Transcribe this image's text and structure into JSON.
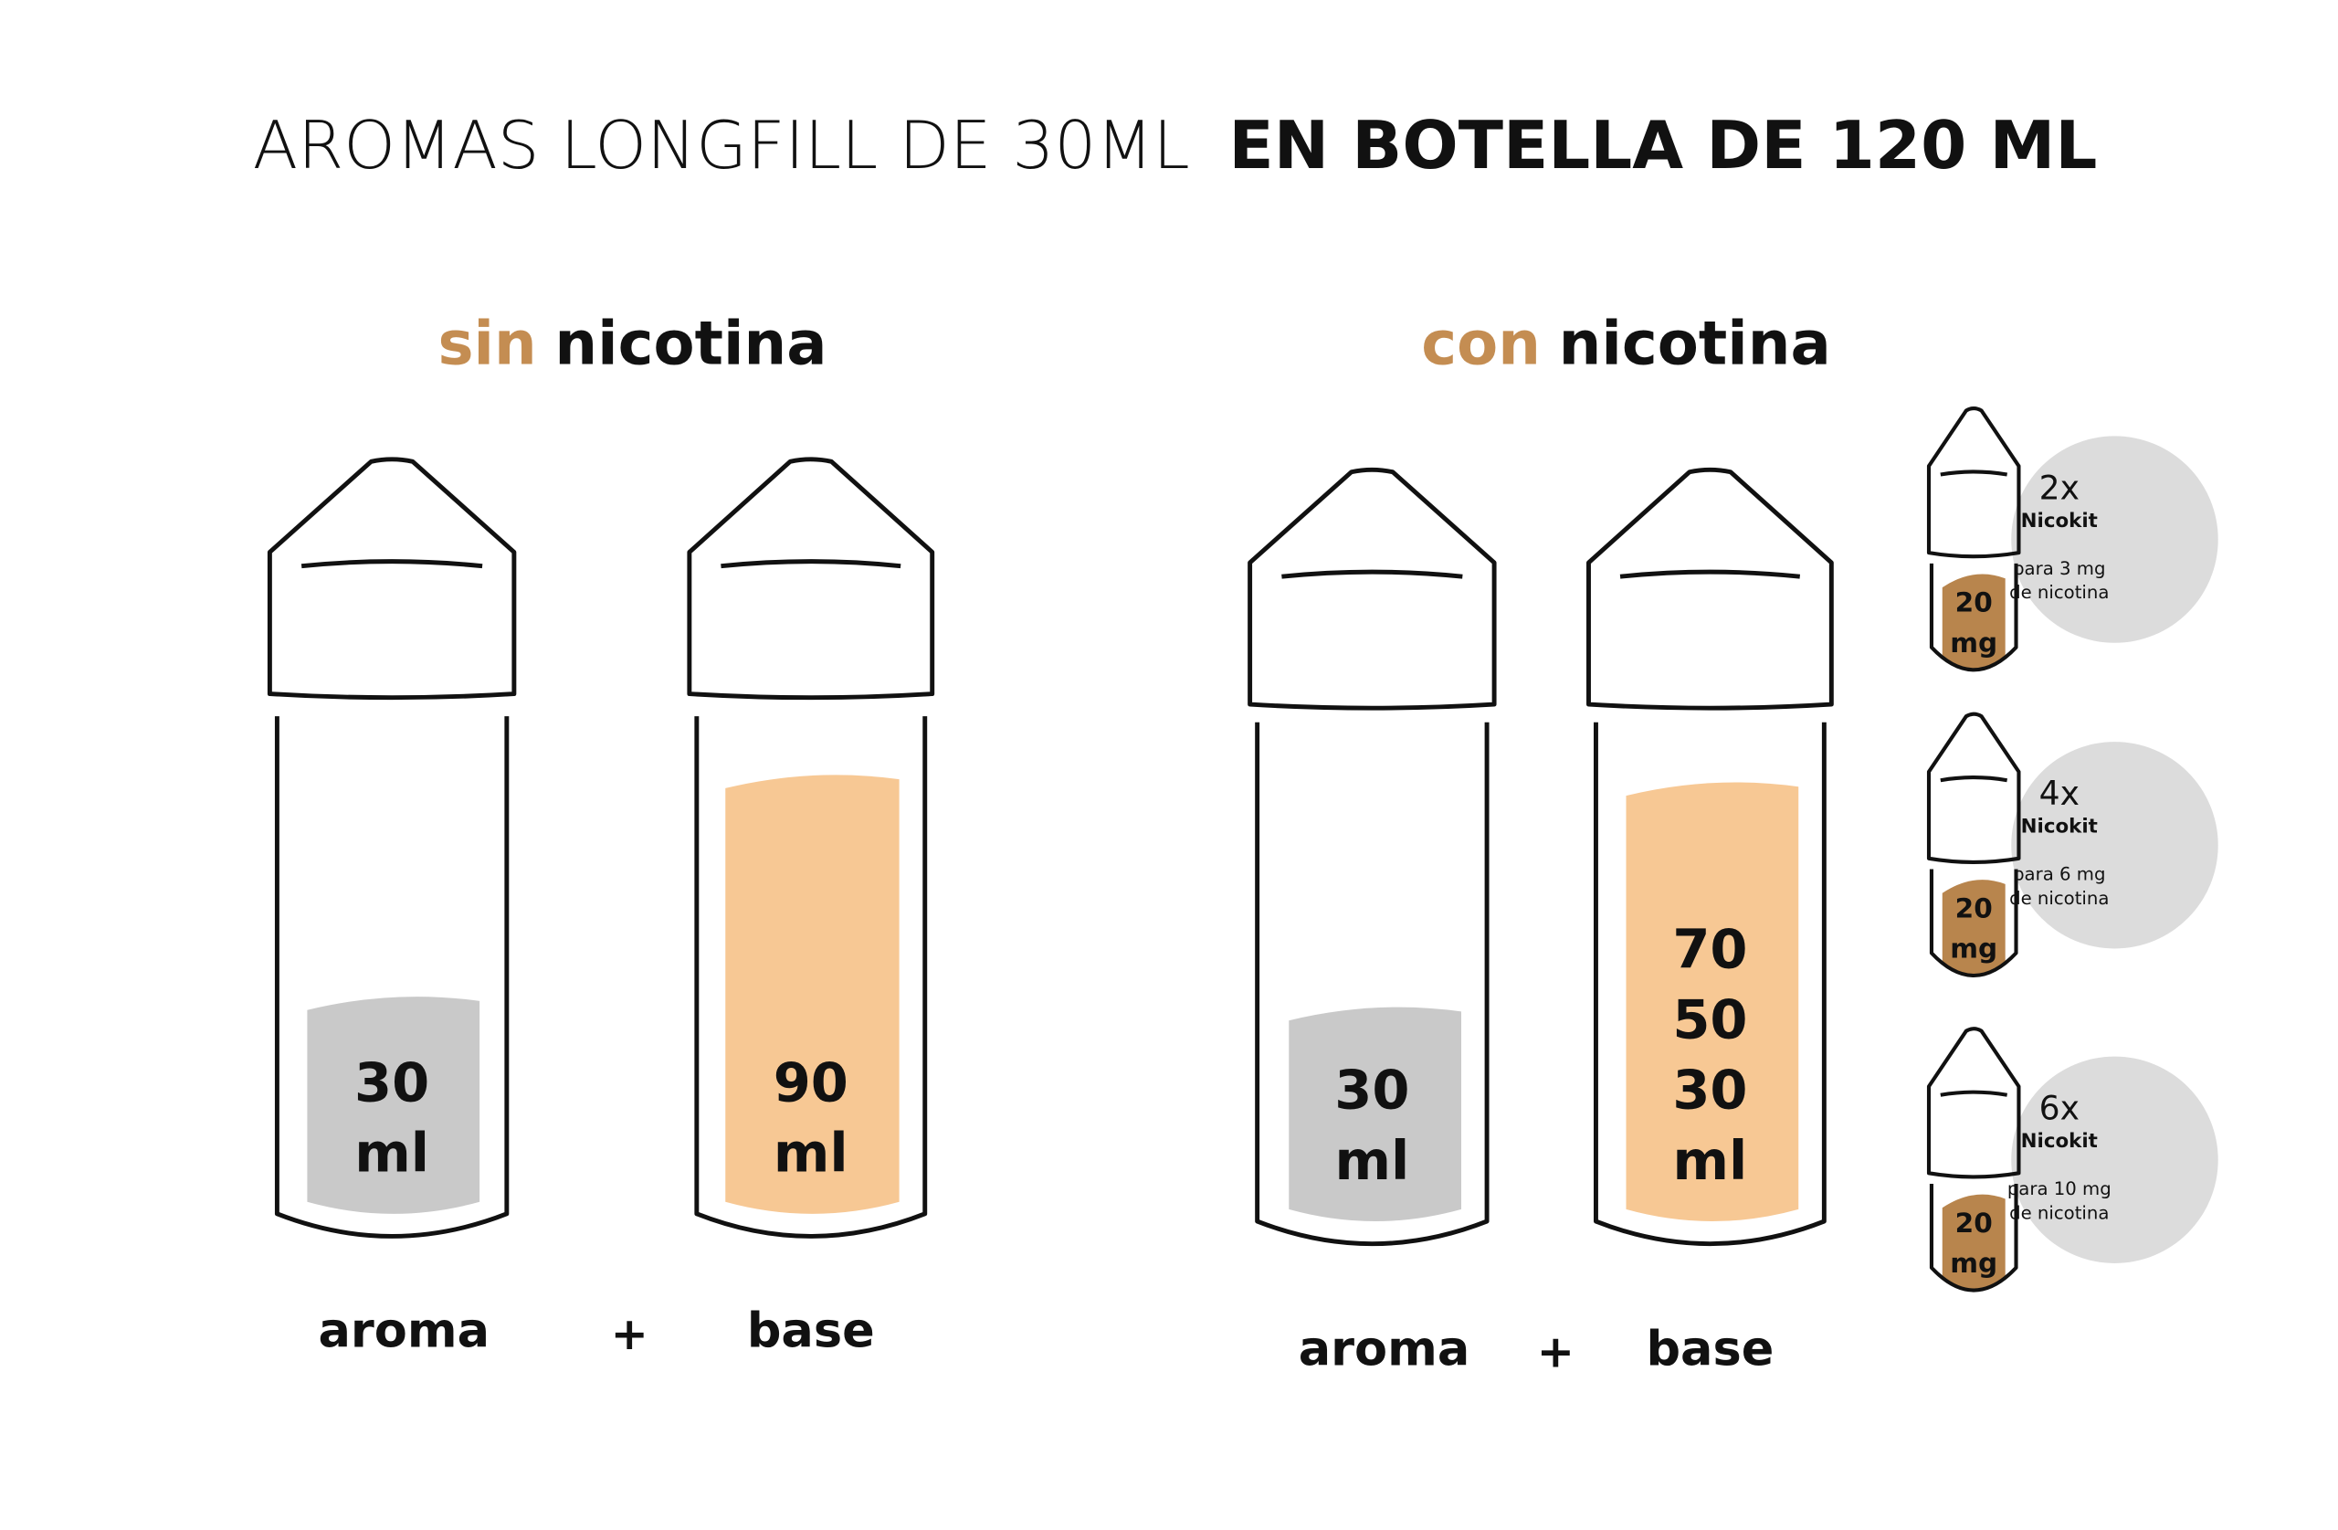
{
  "title": {
    "light": "AROMAS LONGFILL DE 30ML",
    "bold": "EN BOTELLA DE 120 ML"
  },
  "sections": [
    {
      "heading": {
        "accent": "sin",
        "rest": "nicotina"
      },
      "bottles": [
        {
          "label_lines": [
            "30",
            "ml"
          ],
          "caption": "aroma"
        },
        {
          "label_lines": [
            "90",
            "ml"
          ],
          "caption": "base"
        }
      ],
      "operator": "+"
    },
    {
      "heading": {
        "accent": "con",
        "rest": "nicotina"
      },
      "bottles": [
        {
          "label_lines": [
            "30",
            "ml"
          ],
          "caption": "aroma"
        },
        {
          "label_lines": [
            "70",
            "50",
            "30",
            "ml"
          ],
          "caption": "base"
        }
      ],
      "operator": "+"
    }
  ],
  "nicokits": [
    {
      "count": "2x",
      "name": "Nicokit",
      "note_lines": [
        "para 3 mg",
        "de nicotina"
      ],
      "strength_lines": [
        "20",
        "mg"
      ]
    },
    {
      "count": "4x",
      "name": "Nicokit",
      "note_lines": [
        "para 6 mg",
        "de nicotina"
      ],
      "strength_lines": [
        "20",
        "mg"
      ]
    },
    {
      "count": "6x",
      "name": "Nicokit",
      "note_lines": [
        "para 10 mg",
        "de nicotina"
      ],
      "strength_lines": [
        "20",
        "mg"
      ]
    }
  ]
}
